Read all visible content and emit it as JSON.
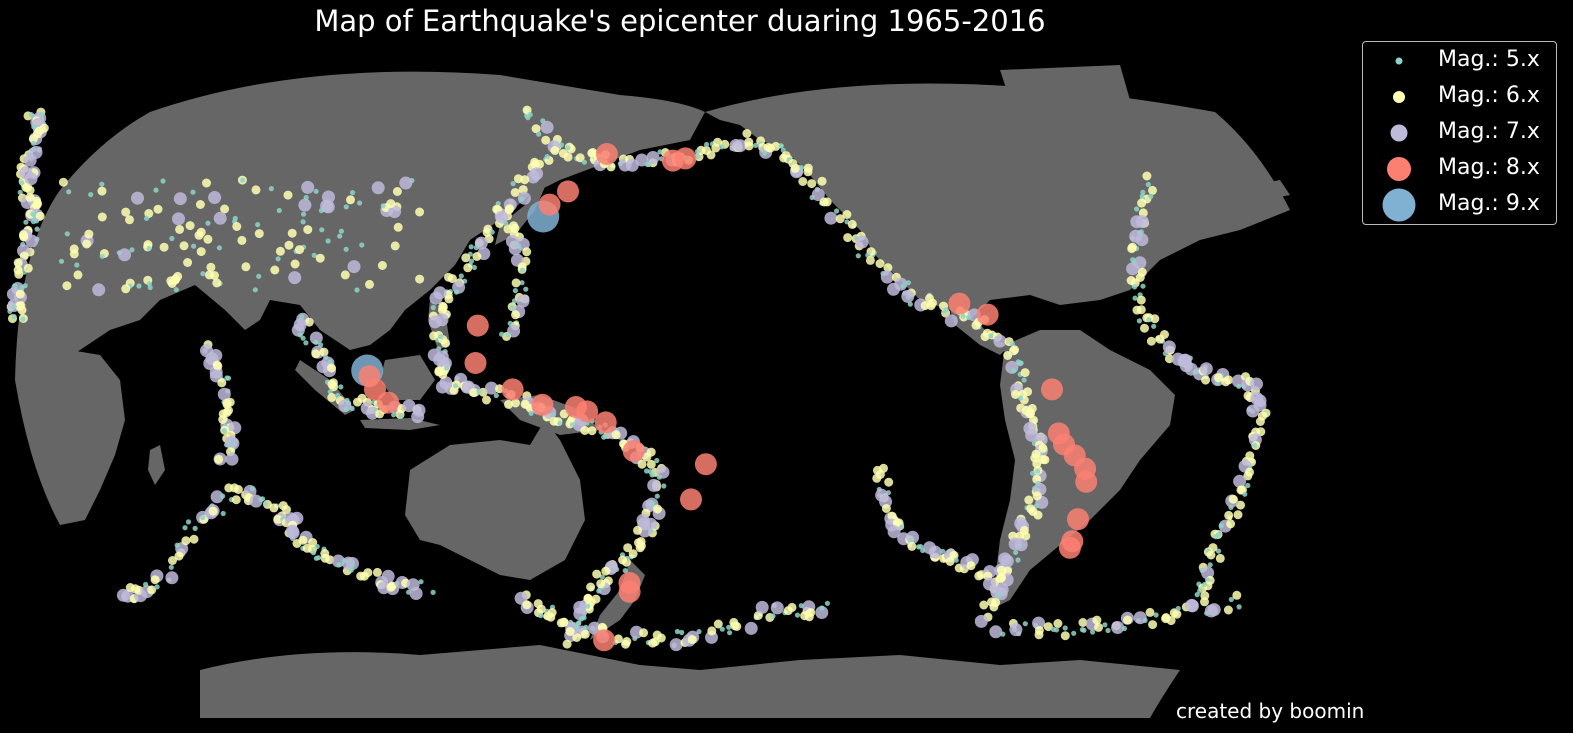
{
  "title": "Map of Earthquake's epicenter duaring 1965-2016",
  "credit": "created by boomin",
  "colors": {
    "background": "#000000",
    "ocean": "#000000",
    "land": "#666666",
    "mag5": "#8dd3c7",
    "mag6": "#ffffb3",
    "mag7": "#bebada",
    "mag8": "#fb8072",
    "mag9": "#80b1d3"
  },
  "map": {
    "projection": "Robinson",
    "central_longitude": 180,
    "layers": [
      "coastlines",
      "epicenters"
    ]
  },
  "legend": {
    "placement": "top-right",
    "items": [
      {
        "label": "Mag.: 5.x",
        "color": "#8dd3c7",
        "magnitude": 5
      },
      {
        "label": "Mag.: 6.x",
        "color": "#ffffb3",
        "magnitude": 6
      },
      {
        "label": "Mag.: 7.x",
        "color": "#bebada",
        "magnitude": 7
      },
      {
        "label": "Mag.: 8.x",
        "color": "#fb8072",
        "magnitude": 8
      },
      {
        "label": "Mag.: 9.x",
        "color": "#80b1d3",
        "magnitude": 9
      }
    ]
  },
  "major_events": [
    {
      "magnitude": 9,
      "lat": 38.3,
      "lon": 142.4
    },
    {
      "magnitude": 9,
      "lat": 3.3,
      "lon": 95.9
    },
    {
      "magnitude": 8,
      "lat": 52.5,
      "lon": 159.5
    },
    {
      "magnitude": 8,
      "lat": 51.0,
      "lon": 178.0
    },
    {
      "magnitude": 8,
      "lat": 51.5,
      "lon": -178.5
    },
    {
      "magnitude": 8,
      "lat": 44.0,
      "lon": 149.0
    },
    {
      "magnitude": 8,
      "lat": 41.0,
      "lon": 144.0
    },
    {
      "magnitude": 8,
      "lat": 13.5,
      "lon": 125.5
    },
    {
      "magnitude": 8,
      "lat": 5.0,
      "lon": 125.0
    },
    {
      "magnitude": 8,
      "lat": -1.0,
      "lon": 98.0
    },
    {
      "magnitude": 8,
      "lat": 2.0,
      "lon": 96.5
    },
    {
      "magnitude": 8,
      "lat": -4.0,
      "lon": 101.5
    },
    {
      "magnitude": 8,
      "lat": -1.0,
      "lon": 135.0
    },
    {
      "magnitude": 8,
      "lat": -4.5,
      "lon": 143.0
    },
    {
      "magnitude": 8,
      "lat": -5.0,
      "lon": 152.0
    },
    {
      "magnitude": 8,
      "lat": -6.0,
      "lon": 155.0
    },
    {
      "magnitude": 8,
      "lat": -8.5,
      "lon": 160.0
    },
    {
      "magnitude": 8,
      "lat": -15.0,
      "lon": 167.5
    },
    {
      "magnitude": 8,
      "lat": -18.0,
      "lon": -173.0
    },
    {
      "magnitude": 8,
      "lat": -26.0,
      "lon": -177.0
    },
    {
      "magnitude": 8,
      "lat": -45.0,
      "lon": 166.0
    },
    {
      "magnitude": 8,
      "lat": -47.0,
      "lon": 166.0
    },
    {
      "magnitude": 8,
      "lat": -58.0,
      "lon": 158.5
    },
    {
      "magnitude": 8,
      "lat": 16.0,
      "lon": -97.0
    },
    {
      "magnitude": 8,
      "lat": 18.5,
      "lon": -104.5
    },
    {
      "magnitude": 8,
      "lat": -1.0,
      "lon": -80.0
    },
    {
      "magnitude": 8,
      "lat": -11.0,
      "lon": -78.0
    },
    {
      "magnitude": 8,
      "lat": -13.5,
      "lon": -76.5
    },
    {
      "magnitude": 8,
      "lat": -16.0,
      "lon": -73.5
    },
    {
      "magnitude": 8,
      "lat": -19.0,
      "lon": -70.5
    },
    {
      "magnitude": 8,
      "lat": -22.0,
      "lon": -70.0
    },
    {
      "magnitude": 8,
      "lat": -30.5,
      "lon": -71.5
    },
    {
      "magnitude": 8,
      "lat": -35.5,
      "lon": -72.5
    },
    {
      "magnitude": 8,
      "lat": -37.0,
      "lon": -73.0
    }
  ]
}
